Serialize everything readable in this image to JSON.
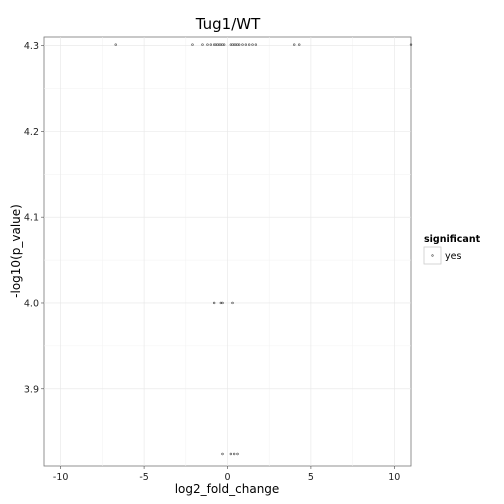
{
  "chart_data": {
    "type": "scatter",
    "title": "Tug1/WT",
    "xlabel": "log2_fold_change",
    "ylabel": "-log10(p_value)",
    "xlim": [
      -11,
      11
    ],
    "ylim": [
      3.81,
      4.31
    ],
    "x_ticks": [
      -10,
      -5,
      0,
      5,
      10
    ],
    "y_ticks": [
      3.9,
      4.0,
      4.1,
      4.2,
      4.3
    ],
    "x_tick_labels": [
      "-10",
      "-5",
      "0",
      "5",
      "10"
    ],
    "y_tick_labels": [
      "3.9",
      "4.0",
      "4.1",
      "4.2",
      "4.3"
    ],
    "grid": true,
    "legend": {
      "title": "significant",
      "placement": "right",
      "entries": [
        {
          "label": "yes",
          "color": "#444444"
        }
      ]
    },
    "point_color": "#444444",
    "series": [
      {
        "name": "yes",
        "points": [
          {
            "x": -6.7,
            "y": 4.301
          },
          {
            "x": -2.1,
            "y": 4.301
          },
          {
            "x": -1.5,
            "y": 4.301
          },
          {
            "x": -1.2,
            "y": 4.301
          },
          {
            "x": -1.0,
            "y": 4.301
          },
          {
            "x": -0.8,
            "y": 4.301
          },
          {
            "x": -0.7,
            "y": 4.301
          },
          {
            "x": -0.6,
            "y": 4.301
          },
          {
            "x": -0.5,
            "y": 4.301
          },
          {
            "x": -0.4,
            "y": 4.301
          },
          {
            "x": -0.3,
            "y": 4.301
          },
          {
            "x": -0.2,
            "y": 4.301
          },
          {
            "x": 0.2,
            "y": 4.301
          },
          {
            "x": 0.3,
            "y": 4.301
          },
          {
            "x": 0.4,
            "y": 4.301
          },
          {
            "x": 0.5,
            "y": 4.301
          },
          {
            "x": 0.6,
            "y": 4.301
          },
          {
            "x": 0.7,
            "y": 4.301
          },
          {
            "x": 0.9,
            "y": 4.301
          },
          {
            "x": 1.1,
            "y": 4.301
          },
          {
            "x": 1.3,
            "y": 4.301
          },
          {
            "x": 1.5,
            "y": 4.301
          },
          {
            "x": 1.7,
            "y": 4.301
          },
          {
            "x": 4.0,
            "y": 4.301
          },
          {
            "x": 4.3,
            "y": 4.301
          },
          {
            "x": 11.0,
            "y": 4.301
          },
          {
            "x": -0.8,
            "y": 4.0
          },
          {
            "x": -0.4,
            "y": 4.0
          },
          {
            "x": -0.3,
            "y": 4.0
          },
          {
            "x": 0.3,
            "y": 4.0
          },
          {
            "x": -0.3,
            "y": 3.824
          },
          {
            "x": 0.2,
            "y": 3.824
          },
          {
            "x": 0.4,
            "y": 3.824
          },
          {
            "x": 0.6,
            "y": 3.824
          }
        ]
      }
    ]
  }
}
